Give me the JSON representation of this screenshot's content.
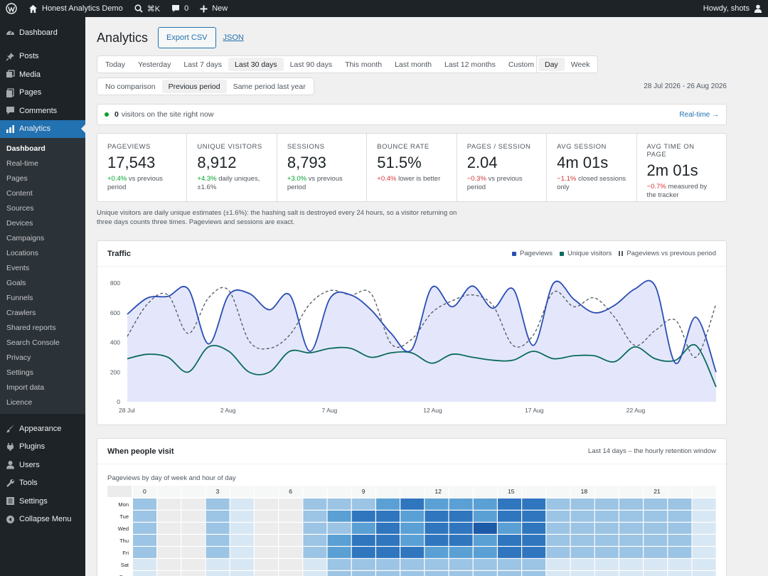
{
  "admin_bar": {
    "site_name": "Honest Analytics Demo",
    "search_shortcut": "⌘K",
    "comments_count": "0",
    "new_label": "New",
    "greeting": "Howdy, shots"
  },
  "sidebar": {
    "menu": [
      {
        "label": "Dashboard",
        "icon": "dashboard-icon"
      },
      {
        "label": "Posts",
        "icon": "pin-icon"
      },
      {
        "label": "Media",
        "icon": "media-icon"
      },
      {
        "label": "Pages",
        "icon": "pages-icon"
      },
      {
        "label": "Comments",
        "icon": "comment-icon"
      },
      {
        "label": "Analytics",
        "icon": "chart-icon"
      }
    ],
    "submenu": [
      "Dashboard",
      "Real-time",
      "Pages",
      "Content",
      "Sources",
      "Devices",
      "Campaigns",
      "Locations",
      "Events",
      "Goals",
      "Funnels",
      "Crawlers",
      "Shared reports",
      "Search Console",
      "Privacy",
      "Settings",
      "Import data",
      "Licence"
    ],
    "menu_bottom": [
      {
        "label": "Appearance",
        "icon": "brush-icon"
      },
      {
        "label": "Plugins",
        "icon": "plugin-icon"
      },
      {
        "label": "Users",
        "icon": "user-icon"
      },
      {
        "label": "Tools",
        "icon": "wrench-icon"
      },
      {
        "label": "Settings",
        "icon": "settings-icon"
      },
      {
        "label": "Collapse Menu",
        "icon": "collapse-icon"
      }
    ]
  },
  "page": {
    "title": "Analytics",
    "export_csv": "Export CSV",
    "json_link": "JSON",
    "ranges": [
      "Today",
      "Yesterday",
      "Last 7 days",
      "Last 30 days",
      "Last 90 days",
      "This month",
      "Last month",
      "Last 12 months",
      "Custom"
    ],
    "active_range": "Last 30 days",
    "granularity": [
      "Day",
      "Week"
    ],
    "active_granularity": "Day",
    "comparisons": [
      "No comparison",
      "Previous period",
      "Same period last year"
    ],
    "active_comparison": "Previous period",
    "date_range": "28 Jul 2026 - 26 Aug 2026"
  },
  "realtime": {
    "count": "0",
    "text": "visitors on the site right now",
    "link": "Real-time →"
  },
  "stats": [
    {
      "label": "PAGEVIEWS",
      "value": "17,543",
      "change": "+0.4%",
      "dir": "up",
      "note": " vs previous period"
    },
    {
      "label": "UNIQUE VISITORS",
      "value": "8,912",
      "change": "+4.3%",
      "dir": "up",
      "note": " daily uniques, ±1.6%"
    },
    {
      "label": "SESSIONS",
      "value": "8,793",
      "change": "+3.0%",
      "dir": "up",
      "note": " vs previous period"
    },
    {
      "label": "BOUNCE RATE",
      "value": "51.5%",
      "change": "+0.4%",
      "dir": "down",
      "note": " lower is better"
    },
    {
      "label": "PAGES / SESSION",
      "value": "2.04",
      "change": "−0.3%",
      "dir": "down",
      "note": " vs previous period"
    },
    {
      "label": "AVG SESSION",
      "value": "4m 01s",
      "change": "−1.1%",
      "dir": "down",
      "note": " closed sessions only"
    },
    {
      "label": "AVG TIME ON PAGE",
      "value": "2m 01s",
      "change": "−0.7%",
      "dir": "down",
      "note": " measured by the tracker"
    }
  ],
  "stats_note": "Unique visitors are daily unique estimates (±1.6%): the hashing salt is destroyed every 24 hours, so a visitor returning on three days counts three times. Pageviews and sessions are exact.",
  "traffic": {
    "title": "Traffic",
    "legend": [
      "Pageviews",
      "Unique visitors",
      "Pageviews vs previous period"
    ]
  },
  "visit": {
    "title": "When people visit",
    "meta": "Last 14 days – the hourly retention window",
    "subtitle": "Pageviews by day of week and hour of day"
  },
  "colors": {
    "accent": "#2271b1",
    "pageviews": "#2a4db3",
    "visitors": "#0b6b5c",
    "previous": "#50575e",
    "area": "#e4e7fb"
  },
  "chart_data": [
    {
      "type": "line",
      "title": "Traffic",
      "x": [
        "28 Jul",
        "29 Jul",
        "30 Jul",
        "31 Jul",
        "1 Aug",
        "2 Aug",
        "3 Aug",
        "4 Aug",
        "5 Aug",
        "6 Aug",
        "7 Aug",
        "8 Aug",
        "9 Aug",
        "10 Aug",
        "11 Aug",
        "12 Aug",
        "13 Aug",
        "14 Aug",
        "15 Aug",
        "16 Aug",
        "17 Aug",
        "18 Aug",
        "19 Aug",
        "20 Aug",
        "21 Aug",
        "22 Aug",
        "23 Aug",
        "24 Aug",
        "25 Aug",
        "26 Aug"
      ],
      "xticks": [
        "28 Jul",
        "2 Aug",
        "7 Aug",
        "12 Aug",
        "17 Aug",
        "22 Aug"
      ],
      "ylim": [
        0,
        800
      ],
      "yticks": [
        0,
        200,
        400,
        600,
        800
      ],
      "series": [
        {
          "name": "Pageviews",
          "values": [
            590,
            700,
            710,
            760,
            390,
            720,
            730,
            620,
            720,
            340,
            700,
            720,
            620,
            460,
            350,
            770,
            640,
            780,
            630,
            760,
            380,
            800,
            690,
            600,
            650,
            760,
            780,
            260,
            570,
            200
          ]
        },
        {
          "name": "Unique visitors",
          "values": [
            290,
            320,
            300,
            200,
            370,
            340,
            200,
            200,
            340,
            330,
            360,
            360,
            300,
            330,
            330,
            260,
            320,
            300,
            280,
            280,
            340,
            290,
            310,
            310,
            270,
            370,
            290,
            280,
            380,
            100
          ]
        },
        {
          "name": "Pageviews vs previous period",
          "values": [
            440,
            660,
            720,
            460,
            700,
            750,
            410,
            360,
            450,
            660,
            750,
            720,
            730,
            390,
            420,
            600,
            680,
            720,
            650,
            380,
            450,
            740,
            640,
            700,
            570,
            380,
            480,
            550,
            300,
            660
          ]
        }
      ]
    },
    {
      "type": "heatmap",
      "title": "When people visit",
      "rows": [
        "Mon",
        "Tue",
        "Wed",
        "Thu",
        "Fri",
        "Sat",
        "Sun"
      ],
      "col_ticks": [
        "0",
        "3",
        "6",
        "9",
        "12",
        "15",
        "18",
        "21"
      ],
      "cols": 24,
      "values": [
        [
          3,
          1,
          1,
          3,
          2,
          1,
          1,
          3,
          3,
          3,
          4,
          5,
          4,
          4,
          4,
          5,
          5,
          3,
          3,
          3,
          3,
          3,
          3,
          2
        ],
        [
          3,
          1,
          1,
          3,
          2,
          1,
          1,
          3,
          4,
          5,
          5,
          4,
          5,
          5,
          4,
          5,
          5,
          3,
          3,
          3,
          3,
          3,
          3,
          2
        ],
        [
          3,
          1,
          1,
          3,
          2,
          1,
          1,
          3,
          3,
          4,
          5,
          4,
          5,
          5,
          6,
          4,
          5,
          3,
          3,
          3,
          3,
          3,
          3,
          2
        ],
        [
          3,
          1,
          1,
          3,
          2,
          1,
          1,
          3,
          4,
          5,
          5,
          4,
          5,
          5,
          4,
          5,
          5,
          3,
          3,
          3,
          3,
          3,
          3,
          2
        ],
        [
          3,
          1,
          1,
          3,
          2,
          1,
          1,
          3,
          4,
          5,
          5,
          5,
          4,
          4,
          4,
          5,
          5,
          3,
          3,
          3,
          3,
          3,
          3,
          2
        ],
        [
          2,
          1,
          1,
          2,
          2,
          1,
          1,
          2,
          3,
          3,
          3,
          3,
          3,
          3,
          3,
          3,
          3,
          2,
          2,
          2,
          2,
          2,
          2,
          2
        ],
        [
          2,
          1,
          1,
          2,
          2,
          1,
          1,
          2,
          3,
          3,
          3,
          3,
          3,
          3,
          3,
          3,
          3,
          2,
          2,
          2,
          2,
          2,
          2,
          2
        ]
      ]
    }
  ]
}
